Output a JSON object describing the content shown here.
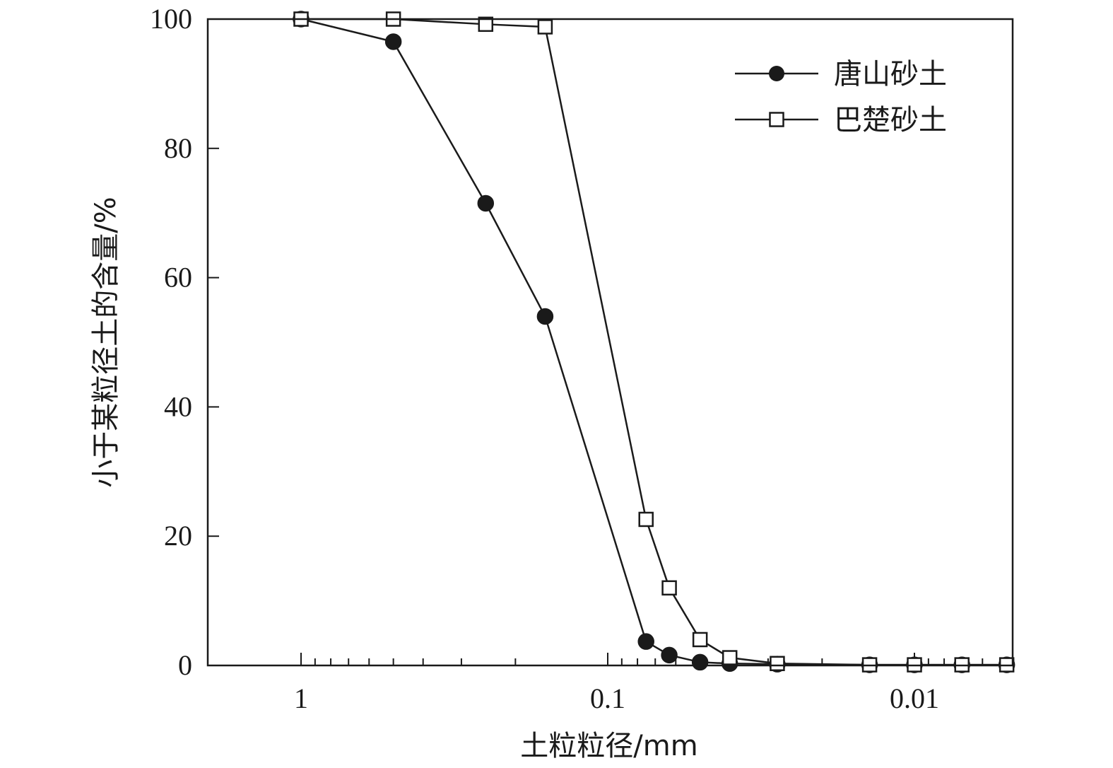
{
  "chart_data": {
    "type": "line",
    "xlabel": "土粒粒径/mm",
    "ylabel": "小于某粒径土的含量/%",
    "x_scale": "log",
    "x_reversed": true,
    "xlim": [
      1.35,
      0.0069
    ],
    "ylim": [
      0,
      100
    ],
    "x_ticks": [
      {
        "value": 1,
        "label": "1"
      },
      {
        "value": 0.1,
        "label": "0.1"
      },
      {
        "value": 0.01,
        "label": "0.01"
      }
    ],
    "y_ticks": [
      {
        "value": 0,
        "label": "0"
      },
      {
        "value": 20,
        "label": "20"
      },
      {
        "value": 40,
        "label": "40"
      },
      {
        "value": 60,
        "label": "60"
      },
      {
        "value": 80,
        "label": "80"
      },
      {
        "value": 100,
        "label": "100"
      }
    ],
    "legend_position": "top-right",
    "grid": false,
    "series": [
      {
        "name": "唐山砂土",
        "marker": "filled-circle",
        "color": "#1a1a1a",
        "x": [
          1.0,
          0.5,
          0.25,
          0.16,
          0.075,
          0.063,
          0.05,
          0.04,
          0.028,
          0.014,
          0.01,
          0.007,
          0.005
        ],
        "y": [
          100,
          96.5,
          71.5,
          54,
          3.7,
          1.6,
          0.5,
          0.3,
          0.2,
          0.1,
          0.1,
          0.1,
          0.1
        ]
      },
      {
        "name": "巴楚砂土",
        "marker": "open-square",
        "color": "#1a1a1a",
        "x": [
          1.0,
          0.5,
          0.25,
          0.16,
          0.075,
          0.063,
          0.05,
          0.04,
          0.028,
          0.014,
          0.01,
          0.007,
          0.005
        ],
        "y": [
          100,
          100,
          99.2,
          98.8,
          22.6,
          12,
          4,
          1.2,
          0.3,
          0.1,
          0.1,
          0.1,
          0.1
        ]
      }
    ]
  }
}
